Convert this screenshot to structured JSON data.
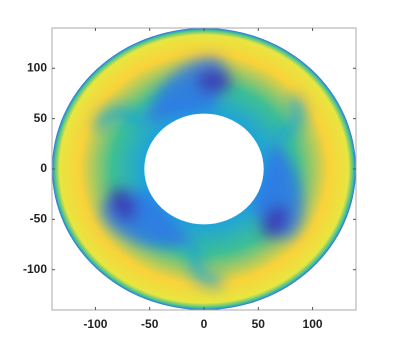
{
  "chart_data": {
    "type": "annulus",
    "xlim": [
      -140,
      140
    ],
    "ylim": [
      -140,
      140
    ],
    "xticks": [
      -100,
      -50,
      0,
      50,
      100
    ],
    "yticks": [
      -100,
      -50,
      0,
      50,
      100
    ],
    "outer_radius": 140,
    "inner_radius": 55,
    "colormap": [
      "#3e26a8",
      "#2f6cf0",
      "#1fa4d8",
      "#3ebf94",
      "#c0bb45",
      "#f9d23a",
      "#e8e640"
    ]
  }
}
